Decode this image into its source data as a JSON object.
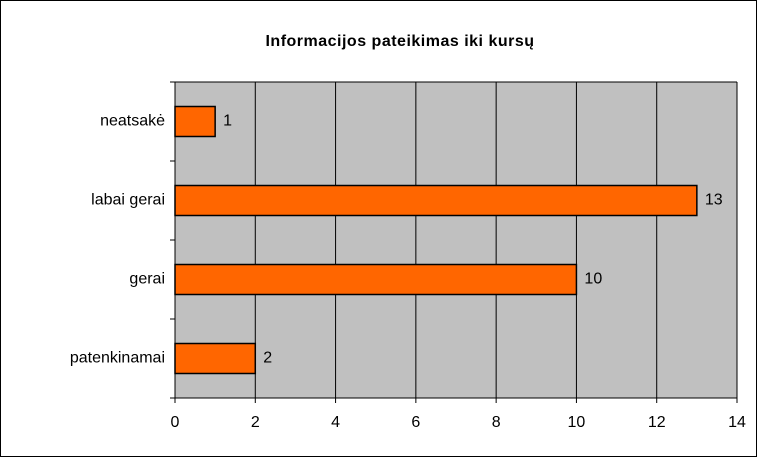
{
  "chart_data": {
    "type": "bar",
    "orientation": "horizontal",
    "title": "Informacijos pateikimas iki kursų",
    "categories": [
      "neatsakė",
      "labai gerai",
      "gerai",
      "patenkinamai"
    ],
    "values": [
      1,
      13,
      10,
      2
    ],
    "color": "#ff6600",
    "xlim": [
      0,
      14
    ],
    "xticks": [
      0,
      2,
      4,
      6,
      8,
      10,
      12,
      14
    ],
    "grid": true
  }
}
